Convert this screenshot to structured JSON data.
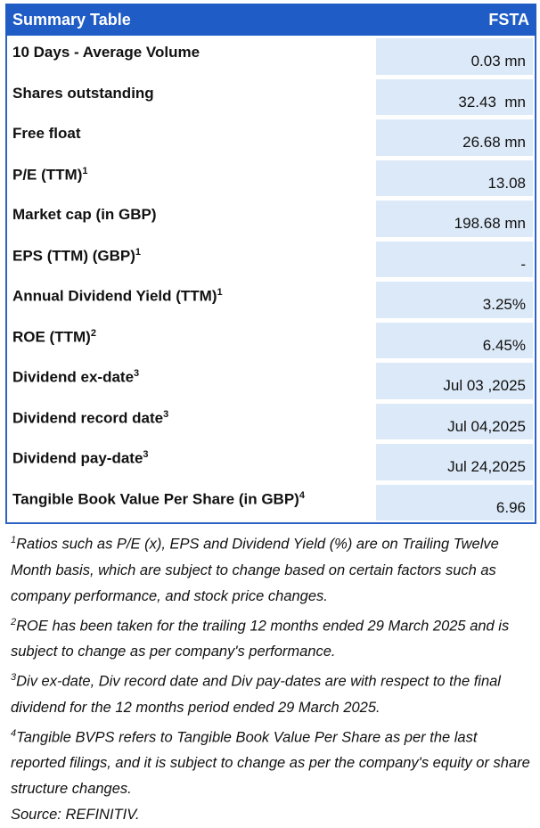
{
  "header": {
    "title": "Summary Table",
    "ticker": "FSTA"
  },
  "table": {
    "rows": [
      {
        "label": "10 Days - Average Volume",
        "value": "0.03 mn"
      },
      {
        "label": "Shares outstanding",
        "value": "32.43  mn"
      },
      {
        "label": "Free float",
        "value": "26.68 mn"
      },
      {
        "label": "P/E (TTM)",
        "sup": "1",
        "value": "13.08"
      },
      {
        "label": "Market cap (in GBP)",
        "value": "198.68 mn"
      },
      {
        "label": "EPS (TTM) (GBP)",
        "sup": "1",
        "value": "-"
      },
      {
        "label": "Annual Dividend Yield (TTM)",
        "sup": "1",
        "value": "3.25%"
      },
      {
        "label": "ROE (TTM)",
        "sup": "2",
        "value": "6.45%"
      },
      {
        "label": "Dividend ex-date",
        "sup": "3",
        "value": "Jul 03 ,2025"
      },
      {
        "label": "Dividend record date",
        "sup": "3",
        "value": "Jul 04,2025"
      },
      {
        "label": "Dividend pay-date",
        "sup": "3",
        "value": "Jul 24,2025"
      },
      {
        "label": "Tangible Book Value Per Share (in GBP)",
        "sup": "4",
        "value": "6.96"
      }
    ]
  },
  "footnotes": [
    {
      "sup": "1",
      "text": "Ratios such as P/E (x), EPS and Dividend Yield (%) are on Trailing Twelve Month basis, which are subject to change based on certain factors such as company performance, and stock price changes."
    },
    {
      "sup": "2",
      "text": "ROE has been taken for the trailing 12 months ended 29 March 2025 and is subject to change as per company's performance."
    },
    {
      "sup": "3",
      "text": "Div ex-date, Div record date and Div pay-dates are with respect to the final dividend for the 12 months period ended  29 March 2025."
    },
    {
      "sup": "4",
      "text": "Tangible BVPS refers to Tangible Book Value Per Share as per the last reported filings, and it is subject to change as per the company's equity or share structure changes."
    }
  ],
  "source": "Source: REFINITIV."
}
